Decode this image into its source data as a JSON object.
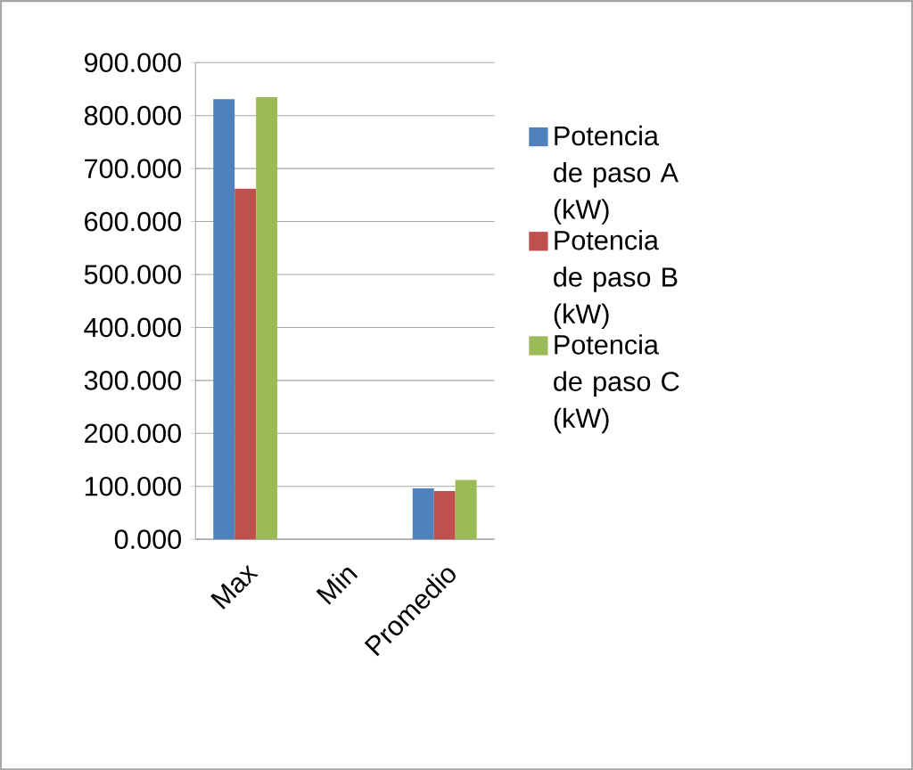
{
  "chart_data": {
    "type": "bar",
    "categories": [
      "Max",
      "Min",
      "Promedio"
    ],
    "series": [
      {
        "name": "Potencia de paso A (kW)",
        "color": "#4f81bd",
        "values": [
          831,
          0,
          96
        ]
      },
      {
        "name": "Potencia de paso B (kW)",
        "color": "#c0504d",
        "values": [
          662,
          0,
          91
        ]
      },
      {
        "name": "Potencia de paso C (kW)",
        "color": "#9bbb59",
        "values": [
          835,
          0,
          112
        ]
      }
    ],
    "ylim": [
      0,
      900
    ],
    "yticks": [
      {
        "value": 0,
        "label": "0.000"
      },
      {
        "value": 100,
        "label": "100.000"
      },
      {
        "value": 200,
        "label": "200.000"
      },
      {
        "value": 300,
        "label": "300.000"
      },
      {
        "value": 400,
        "label": "400.000"
      },
      {
        "value": 500,
        "label": "500.000"
      },
      {
        "value": 600,
        "label": "600.000"
      },
      {
        "value": 700,
        "label": "700.000"
      },
      {
        "value": 800,
        "label": "800.000"
      },
      {
        "value": 900,
        "label": "900.000"
      }
    ],
    "grid": "y",
    "legend": "right"
  }
}
